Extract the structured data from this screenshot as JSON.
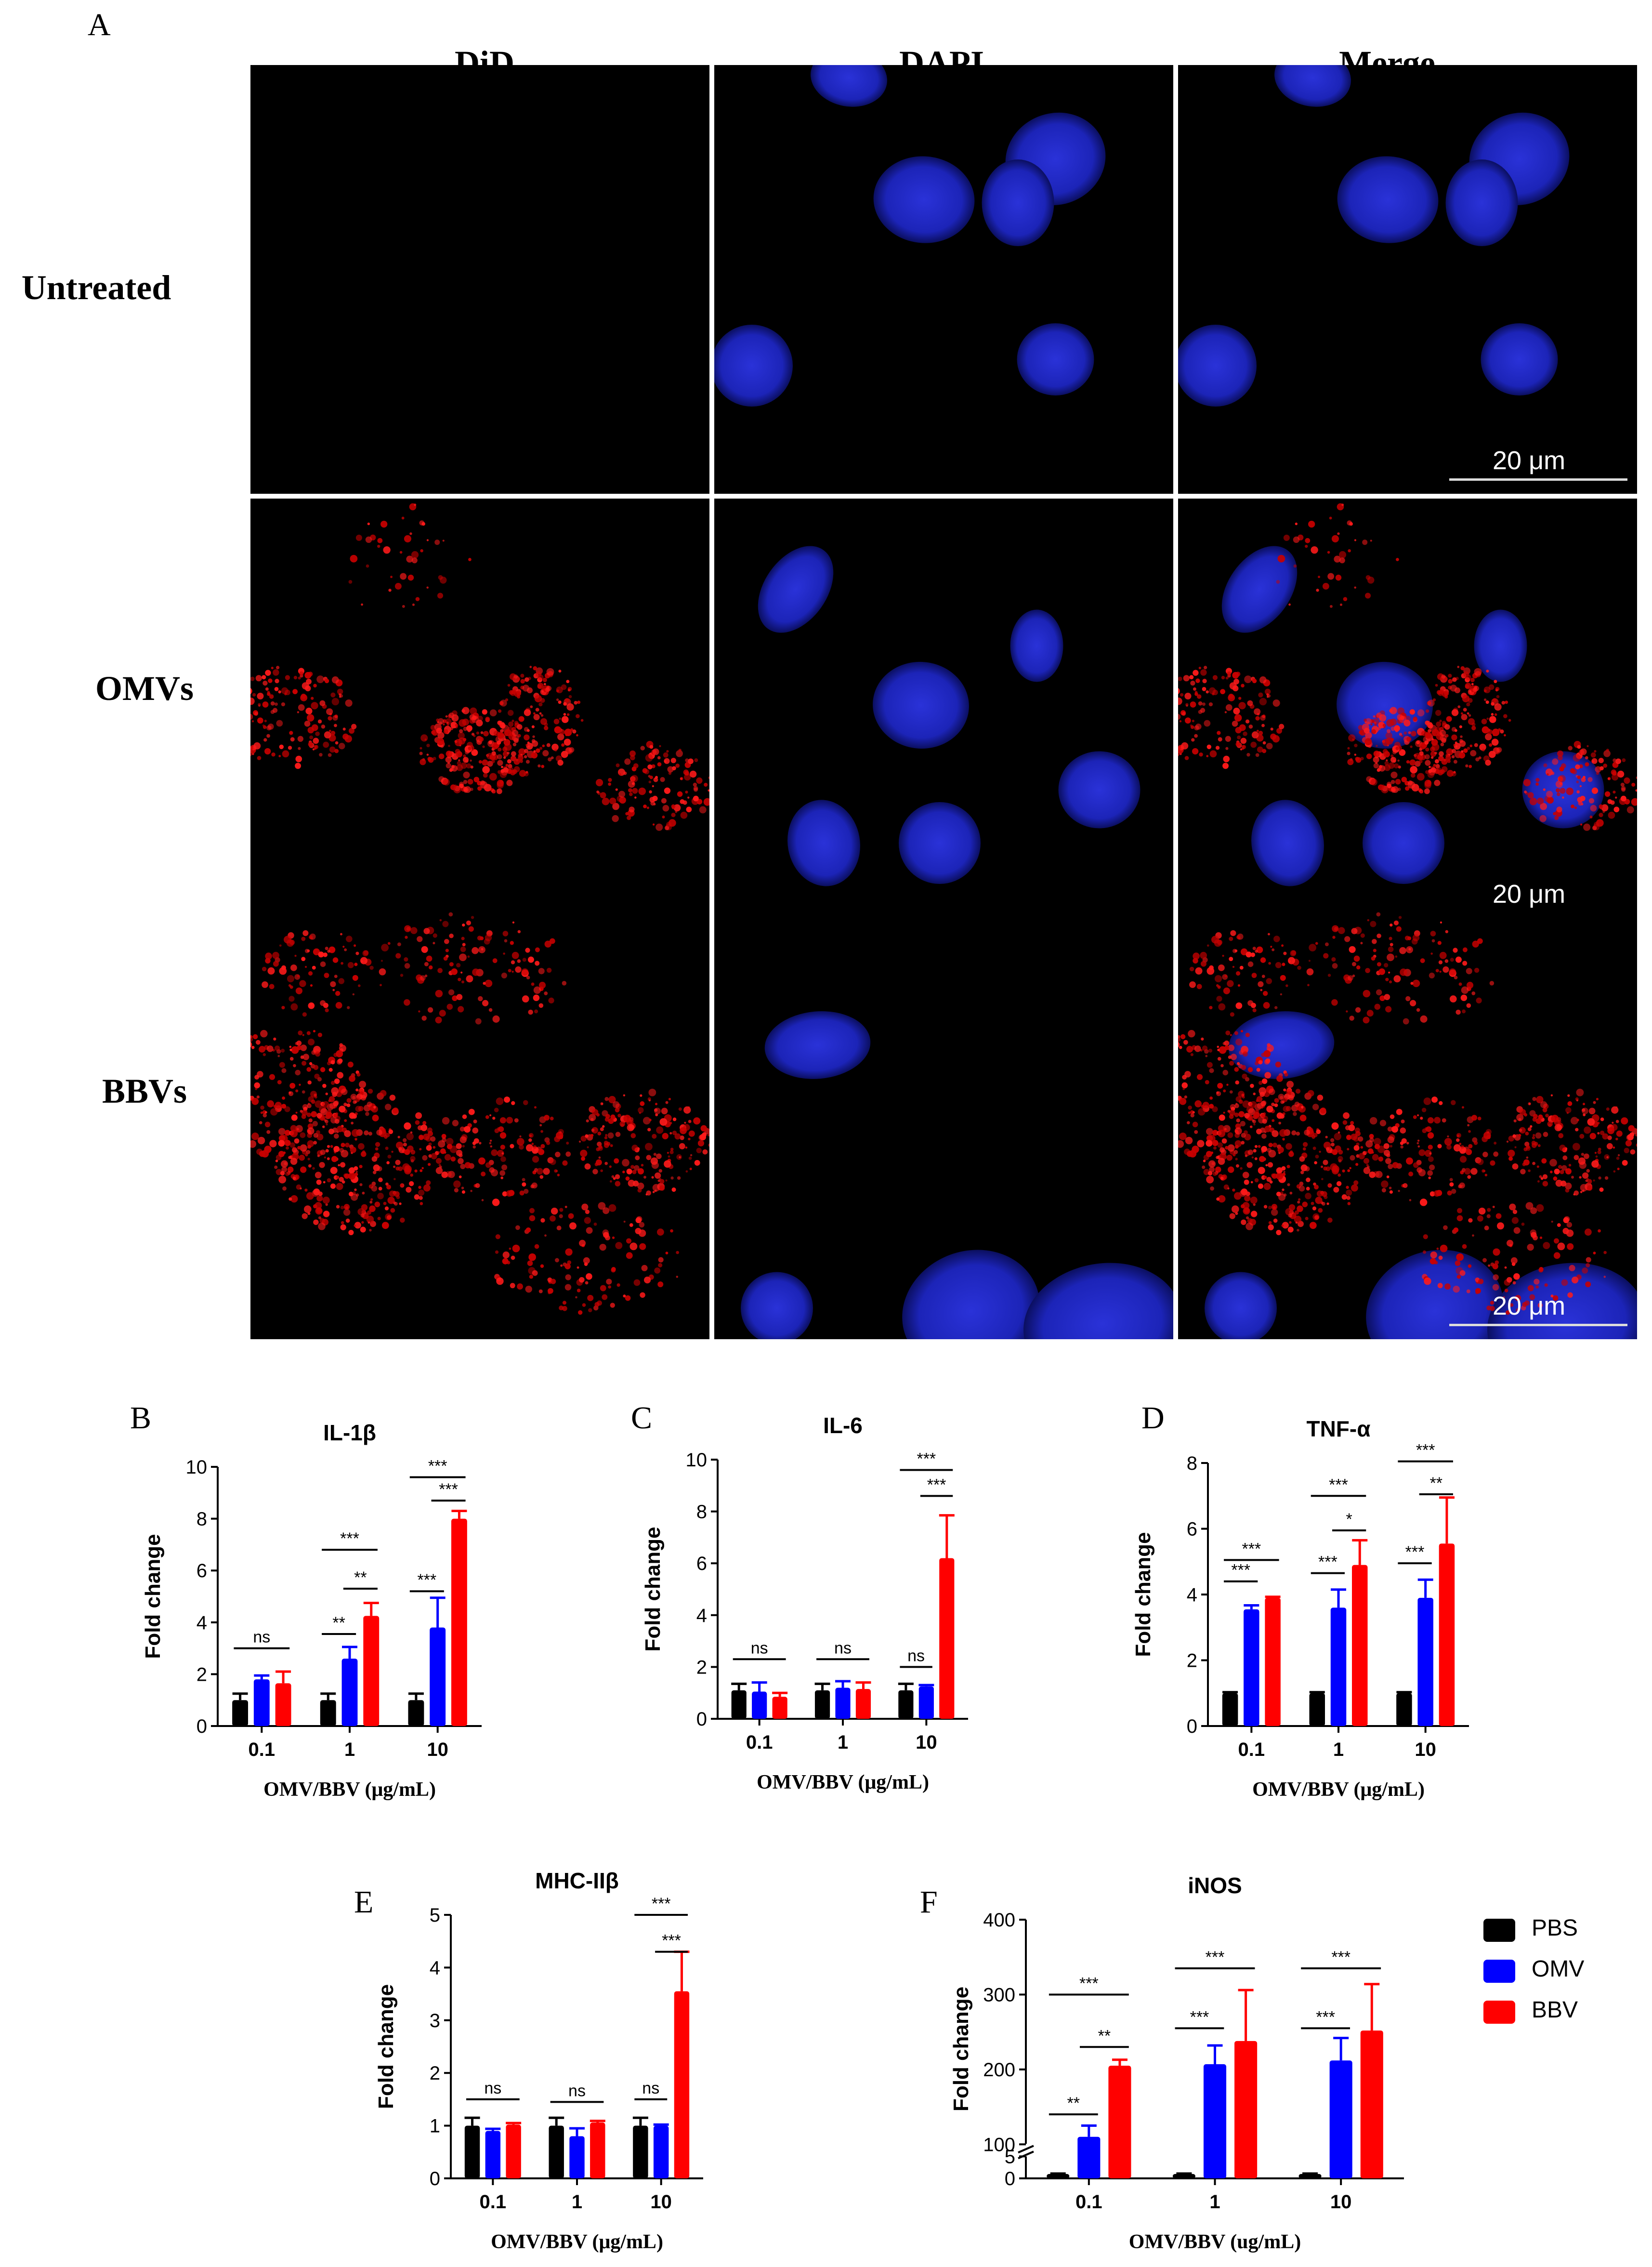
{
  "panelA": {
    "letter": "A",
    "columns": [
      "DiD",
      "DAPI",
      "Merge"
    ],
    "rows": [
      "Untreated",
      "OMVs",
      "BBVs"
    ],
    "scale_label": "20 μm"
  },
  "colors": {
    "PBS": "#000000",
    "OMV": "#0000ff",
    "BBV": "#ff0000"
  },
  "legend": [
    {
      "name": "PBS",
      "color": "#000000"
    },
    {
      "name": "OMV",
      "color": "#0000ff"
    },
    {
      "name": "BBV",
      "color": "#ff0000"
    }
  ],
  "chart_data": [
    {
      "panel": "B",
      "type": "bar",
      "title": "IL-1β",
      "xlabel": "OMV/BBV (μg/mL)",
      "ylabel": "Fold change",
      "categories": [
        "0.1",
        "1",
        "10"
      ],
      "ylim": [
        0,
        10
      ],
      "yticks": [
        "0",
        "2",
        "4",
        "6",
        "8",
        "10"
      ],
      "series": [
        {
          "name": "PBS",
          "values": [
            1.0,
            1.0,
            1.0
          ],
          "errors": [
            0.25,
            0.25,
            0.25
          ]
        },
        {
          "name": "OMV",
          "values": [
            1.8,
            2.6,
            3.8
          ],
          "errors": [
            0.15,
            0.45,
            1.15
          ]
        },
        {
          "name": "BBV",
          "values": [
            1.65,
            4.25,
            8.0
          ],
          "errors": [
            0.45,
            0.5,
            0.3
          ]
        }
      ],
      "annotations": [
        {
          "label": "ns",
          "from": [
            0,
            0
          ],
          "to": [
            0,
            2
          ],
          "level": 3.0
        },
        {
          "label": "**",
          "from": [
            1,
            1
          ],
          "to": [
            1,
            2
          ],
          "level": 5.3
        },
        {
          "label": "***",
          "from": [
            1,
            0
          ],
          "to": [
            1,
            2
          ],
          "level": 6.8
        },
        {
          "label": "**",
          "from": [
            1,
            1
          ],
          "to": [
            1,
            0
          ],
          "level": 3.55
        },
        {
          "label": "***",
          "from": [
            2,
            0
          ],
          "to": [
            2,
            1
          ],
          "level": 5.2
        },
        {
          "label": "***",
          "from": [
            2,
            1
          ],
          "to": [
            2,
            2
          ],
          "level": 8.7
        },
        {
          "label": "***",
          "from": [
            2,
            0
          ],
          "to": [
            2,
            2
          ],
          "level": 9.6
        }
      ]
    },
    {
      "panel": "C",
      "type": "bar",
      "title": "IL-6",
      "xlabel": "OMV/BBV (μg/mL)",
      "ylabel": "Fold change",
      "categories": [
        "0.1",
        "1",
        "10"
      ],
      "ylim": [
        0,
        10
      ],
      "yticks": [
        "0",
        "2",
        "4",
        "6",
        "8",
        "10"
      ],
      "series": [
        {
          "name": "PBS",
          "values": [
            1.1,
            1.1,
            1.1
          ],
          "errors": [
            0.25,
            0.25,
            0.25
          ]
        },
        {
          "name": "OMV",
          "values": [
            1.05,
            1.2,
            1.25
          ],
          "errors": [
            0.35,
            0.25,
            0.05
          ]
        },
        {
          "name": "BBV",
          "values": [
            0.85,
            1.15,
            6.2
          ],
          "errors": [
            0.15,
            0.25,
            1.65
          ]
        }
      ],
      "annotations": [
        {
          "label": "ns",
          "from": [
            0,
            0
          ],
          "to": [
            0,
            2
          ],
          "level": 2.3
        },
        {
          "label": "ns",
          "from": [
            1,
            0
          ],
          "to": [
            1,
            2
          ],
          "level": 2.3
        },
        {
          "label": "ns",
          "from": [
            2,
            0
          ],
          "to": [
            2,
            1
          ],
          "level": 2.0
        },
        {
          "label": "***",
          "from": [
            2,
            1
          ],
          "to": [
            2,
            2
          ],
          "level": 8.6
        },
        {
          "label": "***",
          "from": [
            2,
            0
          ],
          "to": [
            2,
            2
          ],
          "level": 9.6
        }
      ]
    },
    {
      "panel": "D",
      "type": "bar",
      "title": "TNF-α",
      "xlabel": "OMV/BBV (μg/mL)",
      "ylabel": "Fold change",
      "categories": [
        "0.1",
        "1",
        "10"
      ],
      "ylim": [
        0,
        8
      ],
      "yticks": [
        "0",
        "2",
        "4",
        "6",
        "8"
      ],
      "series": [
        {
          "name": "PBS",
          "values": [
            1.0,
            1.0,
            1.0
          ],
          "errors": [
            0.03,
            0.03,
            0.03
          ]
        },
        {
          "name": "OMV",
          "values": [
            3.55,
            3.6,
            3.9
          ],
          "errors": [
            0.12,
            0.55,
            0.55
          ]
        },
        {
          "name": "BBV",
          "values": [
            3.9,
            4.9,
            5.55
          ],
          "errors": [
            0.03,
            0.75,
            1.4
          ]
        }
      ],
      "annotations": [
        {
          "label": "***",
          "from": [
            0,
            0
          ],
          "to": [
            0,
            1
          ],
          "level": 4.4
        },
        {
          "label": "***",
          "from": [
            0,
            0
          ],
          "to": [
            0,
            2
          ],
          "level": 5.05
        },
        {
          "label": "***",
          "from": [
            1,
            0
          ],
          "to": [
            1,
            1
          ],
          "level": 4.65
        },
        {
          "label": "*",
          "from": [
            1,
            1
          ],
          "to": [
            1,
            2
          ],
          "level": 5.95
        },
        {
          "label": "***",
          "from": [
            1,
            0
          ],
          "to": [
            1,
            2
          ],
          "level": 7.0
        },
        {
          "label": "***",
          "from": [
            2,
            0
          ],
          "to": [
            2,
            1
          ],
          "level": 4.95
        },
        {
          "label": "**",
          "from": [
            2,
            1
          ],
          "to": [
            2,
            2
          ],
          "level": 7.05
        },
        {
          "label": "***",
          "from": [
            2,
            0
          ],
          "to": [
            2,
            2
          ],
          "level": 8.05
        }
      ]
    },
    {
      "panel": "E",
      "type": "bar",
      "title": "MHC-IIβ",
      "xlabel": "OMV/BBV (μg/mL)",
      "ylabel": "Fold change",
      "categories": [
        "0.1",
        "1",
        "10"
      ],
      "ylim": [
        0,
        5
      ],
      "yticks": [
        "0",
        "1",
        "2",
        "3",
        "4",
        "5"
      ],
      "series": [
        {
          "name": "PBS",
          "values": [
            1.0,
            1.0,
            1.0
          ],
          "errors": [
            0.15,
            0.15,
            0.15
          ]
        },
        {
          "name": "OMV",
          "values": [
            0.9,
            0.8,
            1.0
          ],
          "errors": [
            0.04,
            0.15,
            0.02
          ]
        },
        {
          "name": "BBV",
          "values": [
            1.02,
            1.06,
            3.55
          ],
          "errors": [
            0.03,
            0.03,
            0.75
          ]
        }
      ],
      "annotations": [
        {
          "label": "ns",
          "from": [
            0,
            0
          ],
          "to": [
            0,
            2
          ],
          "level": 1.5
        },
        {
          "label": "ns",
          "from": [
            1,
            0
          ],
          "to": [
            1,
            2
          ],
          "level": 1.45
        },
        {
          "label": "ns",
          "from": [
            2,
            0
          ],
          "to": [
            2,
            1
          ],
          "level": 1.5
        },
        {
          "label": "***",
          "from": [
            2,
            1
          ],
          "to": [
            2,
            2
          ],
          "level": 4.3
        },
        {
          "label": "***",
          "from": [
            2,
            0
          ],
          "to": [
            2,
            2
          ],
          "level": 5.0
        }
      ]
    },
    {
      "panel": "F",
      "type": "bar",
      "title": "iNOS",
      "xlabel": "OMV/BBV (ug/mL)",
      "ylabel": "Fold change",
      "categories": [
        "0.1",
        "1",
        "10"
      ],
      "y_axis_break": [
        5,
        100
      ],
      "yticks": [
        "0",
        "5",
        "100",
        "200",
        "300",
        "400"
      ],
      "series": [
        {
          "name": "PBS",
          "values": [
            1.0,
            1.0,
            1.0
          ],
          "errors": [
            0.1,
            0.1,
            0.1
          ]
        },
        {
          "name": "OMV",
          "values": [
            110,
            207,
            212
          ],
          "errors": [
            15,
            25,
            30
          ]
        },
        {
          "name": "BBV",
          "values": [
            205,
            238,
            252
          ],
          "errors": [
            8,
            68,
            62
          ]
        }
      ],
      "annotations": [
        {
          "label": "**",
          "from": [
            0,
            0
          ],
          "to": [
            0,
            1
          ],
          "level": 140
        },
        {
          "label": "**",
          "from": [
            0,
            1
          ],
          "to": [
            0,
            2
          ],
          "level": 230
        },
        {
          "label": "***",
          "from": [
            0,
            0
          ],
          "to": [
            0,
            2
          ],
          "level": 300
        },
        {
          "label": "***",
          "from": [
            1,
            0
          ],
          "to": [
            1,
            1
          ],
          "level": 255
        },
        {
          "label": "***",
          "from": [
            1,
            0
          ],
          "to": [
            1,
            2
          ],
          "level": 335
        },
        {
          "label": "***",
          "from": [
            2,
            0
          ],
          "to": [
            2,
            1
          ],
          "level": 255
        },
        {
          "label": "***",
          "from": [
            2,
            0
          ],
          "to": [
            2,
            2
          ],
          "level": 335
        }
      ]
    }
  ]
}
